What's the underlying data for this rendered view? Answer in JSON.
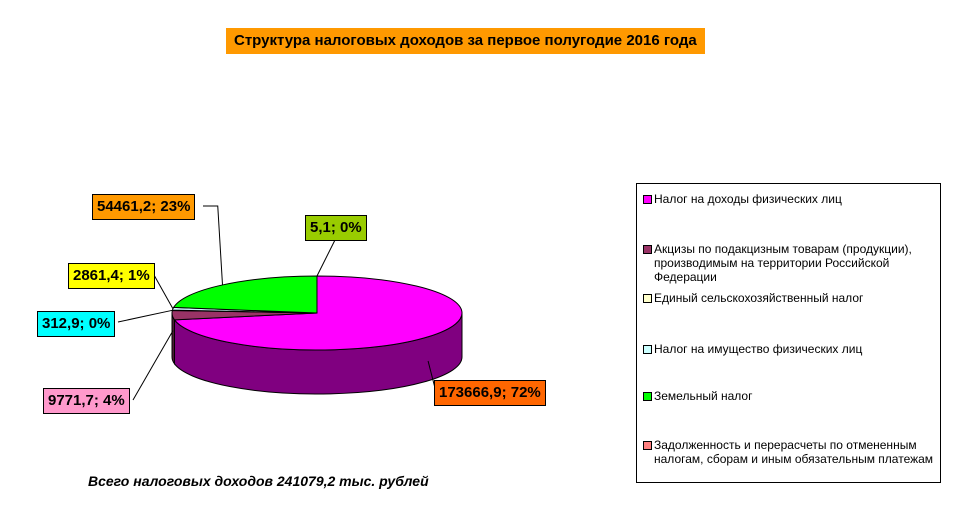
{
  "chart_data": {
    "type": "pie",
    "title": "Структура налоговых доходов за первое полугодие 2016 года",
    "slices": [
      {
        "name": "Налог на доходы физических лиц",
        "value": 173666.9,
        "label": "173666,9; 72%",
        "color": "#ff00ff",
        "side": "#800080",
        "label_bg": "#ff6600"
      },
      {
        "name": "Акцизы по подакцизным товарам (продукции), производимым на территории Российской Федерации",
        "value": 9771.7,
        "label": "9771,7; 4%",
        "color": "#993366",
        "side": "#4d1a33",
        "label_bg": "#ff99cc"
      },
      {
        "name": "Единый сельскохозяйственный налог",
        "value": 312.9,
        "label": "312,9; 0%",
        "color": "#ffffcc",
        "side": "#999966",
        "label_bg": "#00ffff"
      },
      {
        "name": "Налог на имущество физических лиц",
        "value": 2861.4,
        "label": "2861,4; 1%",
        "color": "#ccffff",
        "side": "#669999",
        "label_bg": "#ffff00"
      },
      {
        "name": "Земельный налог",
        "value": 54461.2,
        "label": "54461,2; 23%",
        "color": "#00ff00",
        "side": "#008000",
        "label_bg": "#ff9900"
      },
      {
        "name": "Задолженность и перерасчеты по отмененным налогам, сборам и иным обязательным платежам",
        "value": 5.1,
        "label": "5,1; 0%",
        "color": "#ff8080",
        "side": "#993333",
        "label_bg": "#99cc00"
      }
    ],
    "legend_position": "right"
  },
  "footer_note": "Всего налоговых доходов 241079,2 тыс. рублей"
}
